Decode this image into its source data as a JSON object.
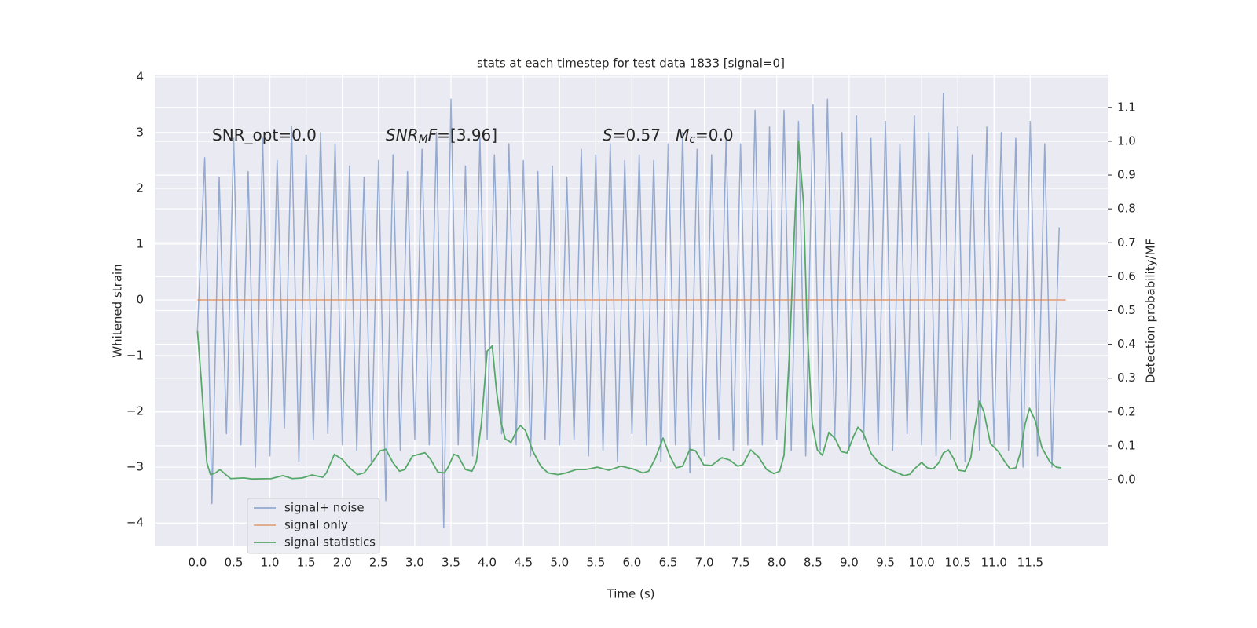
{
  "chart_data": {
    "type": "line",
    "title": "stats at each timestep for test data 1833 [signal=0]",
    "xlabel": "Time (s)",
    "ylabel": "Whitened strain",
    "y2label": "Detection probability/MF",
    "annotations": [
      [
        "SNR_opt=0.0"
      ],
      [
        "SNR",
        "M",
        "F",
        "=[3.96]"
      ],
      [
        "S",
        "=0.57   ",
        "M",
        "c",
        "=0.0"
      ]
    ],
    "xlim": [
      -0.59,
      12.57
    ],
    "ylim": [
      -4.42,
      4.04
    ],
    "y2lim": [
      -0.197,
      1.197
    ],
    "xticks": [
      {
        "value": 0,
        "label": "0.0"
      },
      0.5,
      {
        "value": 1,
        "label": "1.0"
      },
      1.5,
      {
        "value": 2,
        "label": "2.0"
      },
      2.5,
      {
        "value": 3,
        "label": "3.0"
      },
      3.5,
      {
        "value": 4,
        "label": "4.0"
      },
      4.5,
      {
        "value": 5,
        "label": "5.0"
      },
      5.5,
      {
        "value": 6,
        "label": "6.0"
      },
      6.5,
      {
        "value": 7,
        "label": "7.0"
      },
      7.5,
      {
        "value": 8,
        "label": "8.0"
      },
      8.5,
      {
        "value": 9,
        "label": "9.0"
      },
      9.5,
      {
        "value": 10,
        "label": "10.0"
      },
      10.5,
      {
        "value": 11,
        "label": "11.0"
      },
      11.5
    ],
    "yticks": [
      {
        "value": -4,
        "label": "−4"
      },
      {
        "value": -3,
        "label": "−3"
      },
      {
        "value": -2,
        "label": "−2"
      },
      {
        "value": -1,
        "label": "−1"
      },
      0,
      1,
      2,
      3,
      4
    ],
    "y2ticks": [
      {
        "value": 0,
        "label": "0.0"
      },
      0.1,
      0.2,
      0.3,
      0.4,
      0.5,
      0.6,
      0.7,
      0.8,
      0.9,
      {
        "value": 1,
        "label": "1.0"
      },
      1.1
    ],
    "grid": true,
    "legend": "lower left",
    "series": [
      {
        "name": "signal+ noise",
        "color": "#4c72b0",
        "x": [
          0,
          0.1,
          0.2,
          0.3,
          0.4,
          0.5,
          0.6,
          0.7,
          0.8,
          0.9,
          1,
          1.1,
          1.2,
          1.3,
          1.4,
          1.5,
          1.6,
          1.7,
          1.8,
          1.9,
          2,
          2.1,
          2.2,
          2.3,
          2.4,
          2.5,
          2.6,
          2.7,
          2.8,
          2.9,
          3,
          3.1,
          3.2,
          3.3,
          3.4,
          3.5,
          3.6,
          3.7,
          3.8,
          3.9,
          4,
          4.1,
          4.2,
          4.3,
          4.4,
          4.5,
          4.6,
          4.7,
          4.8,
          4.9,
          5,
          5.1,
          5.2,
          5.3,
          5.4,
          5.5,
          5.6,
          5.7,
          5.8,
          5.9,
          6,
          6.1,
          6.2,
          6.3,
          6.4,
          6.5,
          6.6,
          6.7,
          6.8,
          6.9,
          7,
          7.1,
          7.2,
          7.3,
          7.4,
          7.5,
          7.6,
          7.7,
          7.8,
          7.9,
          8,
          8.1,
          8.2,
          8.3,
          8.4,
          8.5,
          8.6,
          8.7,
          8.8,
          8.9,
          9,
          9.1,
          9.2,
          9.3,
          9.4,
          9.5,
          9.6,
          9.7,
          9.8,
          9.9,
          10,
          10.1,
          10.2,
          10.3,
          10.4,
          10.5,
          10.6,
          10.7,
          10.8,
          10.9,
          11,
          11.1,
          11.2,
          11.3,
          11.4,
          11.5,
          11.6,
          11.7,
          11.8,
          11.9
        ],
        "values": [
          -0.55,
          2.55,
          -3.65,
          2.2,
          -2.4,
          2.9,
          -2.6,
          2.3,
          -3.0,
          2.9,
          -2.8,
          2.5,
          -2.3,
          3.1,
          -2.9,
          2.6,
          -2.5,
          3.0,
          -2.4,
          2.8,
          -2.6,
          2.4,
          -2.7,
          2.2,
          -2.9,
          2.5,
          -3.6,
          2.6,
          -2.7,
          2.3,
          -2.5,
          2.7,
          -2.6,
          3.0,
          -4.08,
          3.6,
          -2.6,
          2.4,
          -2.8,
          2.9,
          -2.5,
          2.6,
          -2.4,
          2.8,
          -2.6,
          2.5,
          -2.8,
          2.3,
          -2.5,
          2.4,
          -2.6,
          2.2,
          -2.5,
          2.7,
          -2.8,
          2.6,
          -2.7,
          2.8,
          -2.9,
          2.5,
          -2.4,
          2.6,
          -2.6,
          2.5,
          -2.9,
          2.8,
          -2.6,
          3.0,
          -3.1,
          2.7,
          -2.8,
          2.6,
          -2.5,
          2.9,
          -2.7,
          2.8,
          -2.6,
          3.4,
          -2.6,
          3.1,
          -2.5,
          3.4,
          -2.7,
          3.2,
          -2.8,
          3.5,
          -2.7,
          3.6,
          -2.5,
          3.0,
          -2.7,
          3.3,
          -2.5,
          2.9,
          -2.6,
          3.2,
          -2.7,
          2.8,
          -2.4,
          3.3,
          -2.6,
          3.0,
          -2.8,
          3.7,
          -2.5,
          3.1,
          -2.9,
          2.6,
          -2.7,
          3.1,
          -2.6,
          3.0,
          -2.7,
          2.9,
          -3.0,
          3.2,
          -2.8,
          2.8,
          -3.0,
          1.3
        ]
      },
      {
        "name": "signal only",
        "color": "#dd8452",
        "x": [
          0,
          11.99
        ],
        "values": [
          0,
          0
        ]
      },
      {
        "name": "signal statistics",
        "color": "#55a868",
        "axis": "y2",
        "x": [
          0,
          0.05,
          0.13,
          0.18,
          0.25,
          0.31,
          0.39,
          0.46,
          0.64,
          0.75,
          1.02,
          1.18,
          1.31,
          1.45,
          1.58,
          1.73,
          1.78,
          1.89,
          2.0,
          2.1,
          2.21,
          2.3,
          2.41,
          2.52,
          2.6,
          2.7,
          2.79,
          2.86,
          2.97,
          3.14,
          3.22,
          3.32,
          3.41,
          3.46,
          3.54,
          3.6,
          3.7,
          3.79,
          3.85,
          3.92,
          4.0,
          4.07,
          4.13,
          4.19,
          4.25,
          4.33,
          4.42,
          4.46,
          4.53,
          4.63,
          4.74,
          4.84,
          4.98,
          5.09,
          5.23,
          5.36,
          5.52,
          5.68,
          5.85,
          6.01,
          6.15,
          6.23,
          6.32,
          6.43,
          6.52,
          6.61,
          6.7,
          6.8,
          6.88,
          6.99,
          7.1,
          7.24,
          7.35,
          7.46,
          7.53,
          7.64,
          7.75,
          7.86,
          7.96,
          8.04,
          8.1,
          8.18,
          8.24,
          8.3,
          8.37,
          8.42,
          8.49,
          8.56,
          8.63,
          8.72,
          8.81,
          8.89,
          8.97,
          9.06,
          9.12,
          9.19,
          9.3,
          9.41,
          9.54,
          9.68,
          9.76,
          9.84,
          9.9,
          10.0,
          10.08,
          10.16,
          10.24,
          10.3,
          10.37,
          10.44,
          10.51,
          10.6,
          10.68,
          10.73,
          10.8,
          10.86,
          10.95,
          11.06,
          11.15,
          11.22,
          11.3,
          11.36,
          11.43,
          11.49,
          11.57,
          11.66,
          11.77,
          11.86,
          11.93
        ],
        "values": [
          0.44,
          0.3,
          0.05,
          0.015,
          0.02,
          0.03,
          0.015,
          0.003,
          0.005,
          0.002,
          0.003,
          0.012,
          0.003,
          0.005,
          0.014,
          0.007,
          0.02,
          0.075,
          0.06,
          0.035,
          0.015,
          0.02,
          0.05,
          0.085,
          0.09,
          0.05,
          0.025,
          0.03,
          0.07,
          0.08,
          0.06,
          0.022,
          0.02,
          0.037,
          0.075,
          0.07,
          0.03,
          0.025,
          0.053,
          0.165,
          0.38,
          0.395,
          0.26,
          0.17,
          0.12,
          0.11,
          0.15,
          0.16,
          0.145,
          0.085,
          0.04,
          0.02,
          0.015,
          0.02,
          0.03,
          0.03,
          0.037,
          0.028,
          0.04,
          0.032,
          0.02,
          0.025,
          0.062,
          0.123,
          0.072,
          0.035,
          0.04,
          0.09,
          0.085,
          0.044,
          0.042,
          0.065,
          0.058,
          0.04,
          0.044,
          0.088,
          0.067,
          0.03,
          0.018,
          0.025,
          0.072,
          0.397,
          0.72,
          1.0,
          0.815,
          0.443,
          0.165,
          0.088,
          0.072,
          0.14,
          0.12,
          0.083,
          0.079,
          0.128,
          0.155,
          0.14,
          0.079,
          0.049,
          0.032,
          0.019,
          0.012,
          0.016,
          0.032,
          0.051,
          0.035,
          0.032,
          0.051,
          0.079,
          0.088,
          0.063,
          0.028,
          0.025,
          0.065,
          0.148,
          0.232,
          0.2,
          0.107,
          0.083,
          0.053,
          0.032,
          0.035,
          0.077,
          0.165,
          0.211,
          0.174,
          0.095,
          0.053,
          0.037,
          0.035
        ]
      }
    ]
  }
}
